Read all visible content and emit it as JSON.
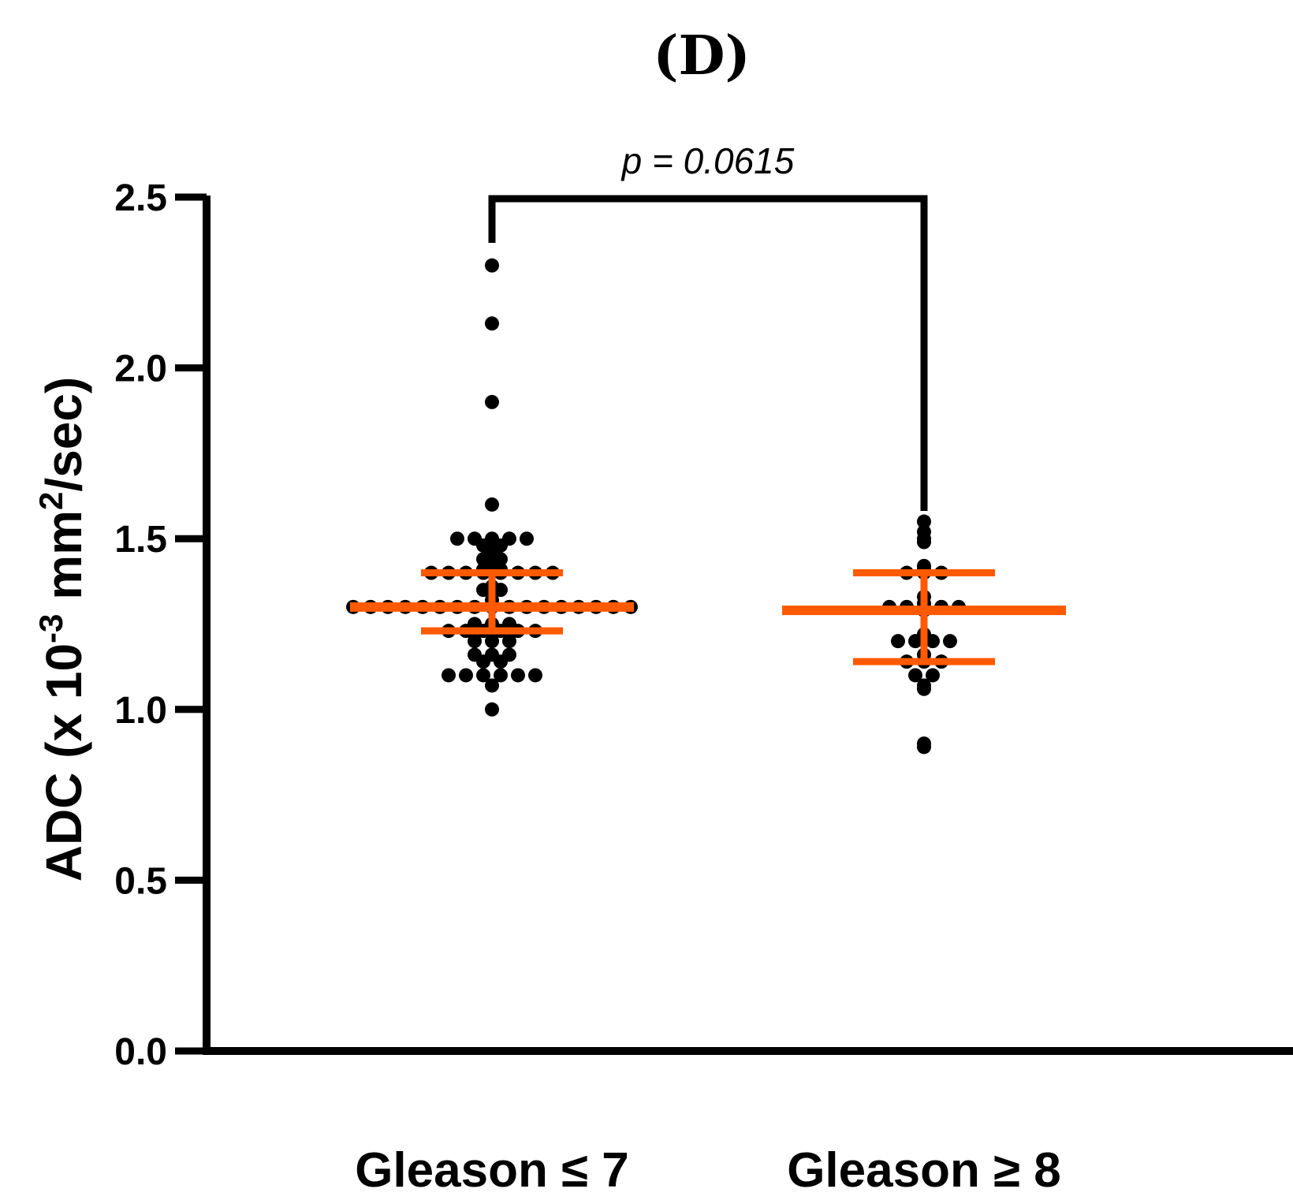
{
  "chart_data": {
    "type": "scatter",
    "panel_label": "(D)",
    "ylabel": {
      "prefix": "ADC (x 10",
      "exp1": "-3",
      "mid": " mm",
      "exp2": "2",
      "suffix": "/sec)"
    },
    "ylim": [
      0,
      2.5
    ],
    "yticks": [
      "0.0",
      "0.5",
      "1.0",
      "1.5",
      "2.0",
      "2.5"
    ],
    "categories": [
      "Gleason ≤ 7",
      "Gleason ≥ 8"
    ],
    "significance": {
      "text": "p = 0.0615",
      "between": [
        0,
        1
      ]
    },
    "colors": {
      "points": "#000000",
      "summary": "#ff5a00",
      "axis": "#000000"
    },
    "series": [
      {
        "name": "Gleason ≤ 7",
        "median": 1.3,
        "ci_low": 1.23,
        "ci_high": 1.4,
        "values": [
          2.3,
          2.13,
          1.9,
          1.6,
          1.5,
          1.5,
          1.5,
          1.5,
          1.5,
          1.48,
          1.48,
          1.46,
          1.44,
          1.44,
          1.43,
          1.41,
          1.41,
          1.4,
          1.4,
          1.4,
          1.4,
          1.4,
          1.4,
          1.4,
          1.4,
          1.36,
          1.35,
          1.35,
          1.34,
          1.32,
          1.3,
          1.3,
          1.3,
          1.3,
          1.3,
          1.3,
          1.3,
          1.3,
          1.3,
          1.3,
          1.3,
          1.3,
          1.3,
          1.3,
          1.3,
          1.3,
          1.3,
          1.25,
          1.25,
          1.25,
          1.23,
          1.23,
          1.23,
          1.23,
          1.23,
          1.23,
          1.2,
          1.2,
          1.2,
          1.16,
          1.16,
          1.16,
          1.14,
          1.14,
          1.1,
          1.1,
          1.1,
          1.1,
          1.1,
          1.1,
          1.07,
          1.0
        ]
      },
      {
        "name": "Gleason ≥ 8",
        "median": 1.29,
        "ci_low": 1.14,
        "ci_high": 1.4,
        "values": [
          1.55,
          1.52,
          1.5,
          1.49,
          1.42,
          1.41,
          1.4,
          1.4,
          1.4,
          1.33,
          1.31,
          1.3,
          1.3,
          1.3,
          1.3,
          1.3,
          1.29,
          1.22,
          1.2,
          1.2,
          1.2,
          1.2,
          1.16,
          1.14,
          1.14,
          1.14,
          1.1,
          1.1,
          1.07,
          1.06,
          0.9,
          0.89
        ]
      }
    ]
  }
}
